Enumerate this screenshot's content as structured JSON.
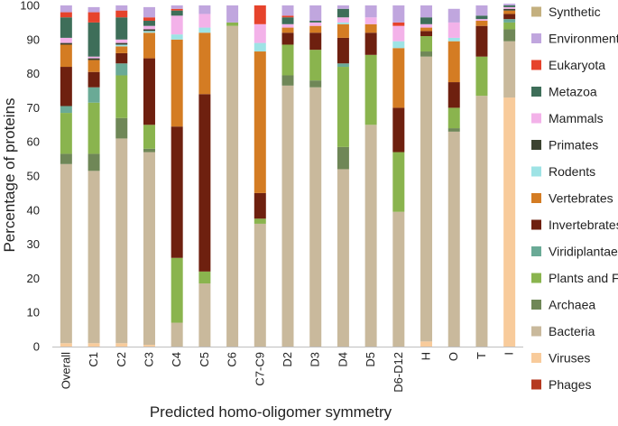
{
  "chart_data": {
    "type": "bar",
    "stacked": true,
    "title": "",
    "xlabel": "Predicted homo-oligomer symmetry",
    "ylabel": "Percentage of proteins",
    "ylim": [
      0,
      100
    ],
    "yticks": [
      0,
      10,
      20,
      30,
      40,
      50,
      60,
      70,
      80,
      90,
      100
    ],
    "grid": false,
    "legend_position": "right",
    "categories": [
      "Overall",
      "C1",
      "C2",
      "C3",
      "C4",
      "C5",
      "C6",
      "C7-C9",
      "D2",
      "D3",
      "D4",
      "D5",
      "D6-D12",
      "H",
      "O",
      "T",
      "I"
    ],
    "series": [
      {
        "name": "Phages",
        "color": "#b5391f",
        "values": [
          0,
          0,
          0,
          0,
          0,
          0,
          0,
          0,
          0,
          0,
          0,
          0,
          0,
          0,
          0,
          0,
          0
        ]
      },
      {
        "name": "Viruses",
        "color": "#f8cb9b",
        "values": [
          1,
          1,
          1,
          0.5,
          0,
          0,
          0,
          0,
          0,
          0,
          0,
          0,
          0,
          1.5,
          0,
          0,
          73
        ]
      },
      {
        "name": "Bacteria",
        "color": "#c9b99c",
        "values": [
          52.5,
          50.5,
          60,
          56.5,
          7,
          18.5,
          94,
          36,
          76.5,
          76,
          52,
          65,
          39.5,
          83.5,
          63,
          73.5,
          16.5
        ]
      },
      {
        "name": "Archaea",
        "color": "#6f8757",
        "values": [
          3,
          5,
          6,
          1,
          0,
          0,
          0,
          0,
          3,
          2,
          6.5,
          0,
          0,
          1.5,
          1,
          0,
          3.5
        ]
      },
      {
        "name": "Plants and Fungi",
        "color": "#8ab44e",
        "values": [
          12,
          15,
          12.5,
          7,
          19,
          3.5,
          1,
          1.5,
          9,
          9,
          23.5,
          20.5,
          17.5,
          4.5,
          6,
          11.5,
          2
        ]
      },
      {
        "name": "Viridiplantae",
        "color": "#6aaa96",
        "values": [
          2,
          4.5,
          3.5,
          0,
          0,
          0,
          0,
          0,
          0,
          0,
          1,
          0,
          0,
          0,
          0,
          0,
          1
        ]
      },
      {
        "name": "Invertebrates",
        "color": "#6e200f",
        "values": [
          11.5,
          4.5,
          3,
          19.5,
          38.5,
          52,
          0,
          7.5,
          3.5,
          5,
          7.5,
          6.5,
          13,
          1.5,
          7.5,
          9,
          1.5
        ]
      },
      {
        "name": "Vertebrates",
        "color": "#d47c23",
        "values": [
          6.5,
          3.5,
          2,
          7.5,
          25.5,
          18,
          0,
          41.5,
          1.5,
          2,
          4,
          2.5,
          17.5,
          1,
          12,
          1.5,
          1
        ]
      },
      {
        "name": "Rodents",
        "color": "#9ee3e5",
        "values": [
          0,
          0,
          0.5,
          0.5,
          1.5,
          1.5,
          0,
          2.5,
          0,
          0,
          0.5,
          0,
          2,
          0,
          1,
          0,
          0
        ]
      },
      {
        "name": "Primates",
        "color": "#3c4331",
        "values": [
          0.5,
          0.5,
          0.5,
          0.5,
          0,
          0,
          0,
          0,
          0,
          0,
          0,
          0,
          0,
          0,
          0,
          0,
          0.5
        ]
      },
      {
        "name": "Mammals",
        "color": "#f3b2e9",
        "values": [
          1.5,
          0.5,
          1,
          1,
          5.5,
          4,
          0,
          5.5,
          1,
          1,
          1.5,
          2,
          4.5,
          1,
          4.5,
          0.5,
          0.5
        ]
      },
      {
        "name": "Metazoa",
        "color": "#3e6e59",
        "values": [
          6,
          10,
          6.5,
          1.5,
          1.5,
          0,
          0,
          0,
          2,
          0.5,
          2.5,
          0,
          0,
          2,
          0,
          1,
          0.5
        ]
      },
      {
        "name": "Eukaryota",
        "color": "#e6432c",
        "values": [
          1.5,
          3,
          2,
          1,
          0.5,
          0,
          0,
          5.5,
          0.5,
          0,
          0,
          0,
          1,
          0,
          0,
          0,
          0
        ]
      },
      {
        "name": "Environmental",
        "color": "#c0a6de",
        "values": [
          2,
          1.5,
          1.5,
          3,
          1,
          2.5,
          5,
          0,
          3,
          4.5,
          1,
          3.5,
          5,
          3.5,
          4,
          3,
          0.5
        ]
      },
      {
        "name": "Synthetic",
        "color": "#c4b07f",
        "values": [
          0,
          0,
          0,
          0,
          0,
          0,
          0,
          0,
          0,
          0,
          0,
          0,
          0,
          0,
          0,
          0,
          0
        ]
      }
    ],
    "legend_order": [
      "Synthetic",
      "Environmental",
      "Eukaryota",
      "Metazoa",
      "Mammals",
      "Primates",
      "Rodents",
      "Vertebrates",
      "Invertebrates",
      "Viridiplantae",
      "Plants and Fungi",
      "Archaea",
      "Bacteria",
      "Viruses",
      "Phages"
    ]
  }
}
